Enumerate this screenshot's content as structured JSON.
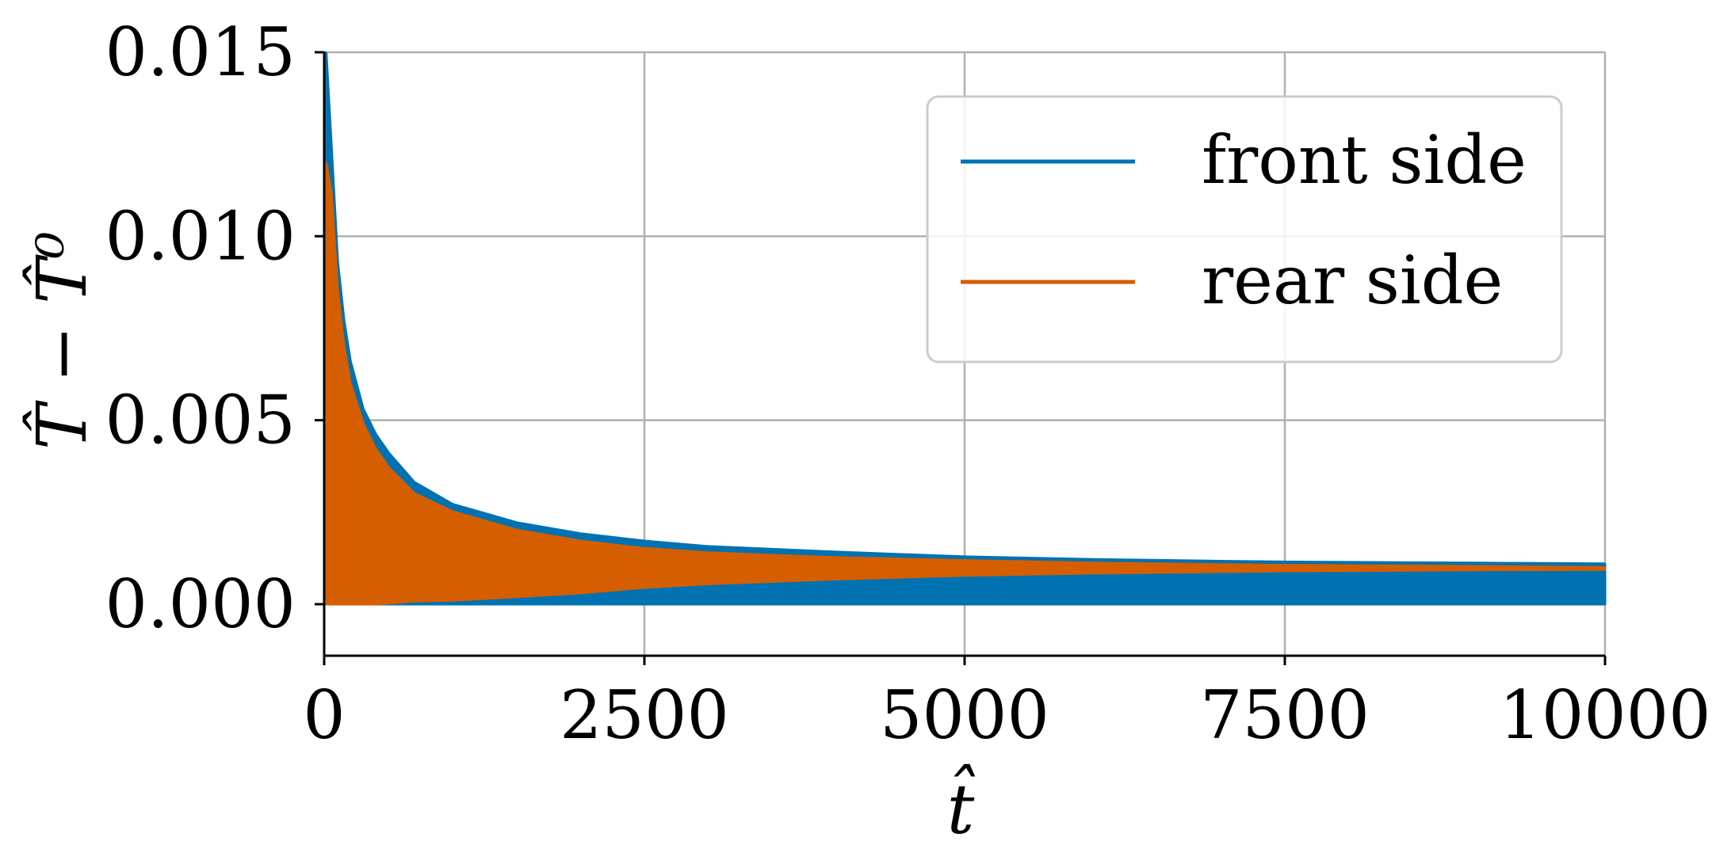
{
  "chart_data": {
    "type": "area",
    "title": "",
    "xlabel": "t̂",
    "ylabel": "T̂ − T̂⁰",
    "xlim": [
      0,
      10000
    ],
    "ylim": [
      -0.0014,
      0.015
    ],
    "xticks": [
      0,
      2500,
      5000,
      7500,
      10000
    ],
    "xtick_labels": [
      "0",
      "2500",
      "5000",
      "7500",
      "10000"
    ],
    "yticks": [
      0.0,
      0.005,
      0.01,
      0.015
    ],
    "ytick_labels": [
      "0.000",
      "0.005",
      "0.010",
      "0.015"
    ],
    "grid": true,
    "legend_position": "top-right",
    "series": [
      {
        "name": "front side",
        "color": "#0072b2",
        "x": [
          10,
          50,
          100,
          150,
          200,
          300,
          400,
          500,
          700,
          1000,
          1500,
          2000,
          2500,
          3000,
          4000,
          5000,
          6000,
          7000,
          7500,
          8000,
          9000,
          10000
        ],
        "upper": [
          0.015,
          0.0125,
          0.0093,
          0.0077,
          0.0066,
          0.0053,
          0.0046,
          0.0041,
          0.0033,
          0.0027,
          0.0022,
          0.0019,
          0.0017,
          0.00155,
          0.0014,
          0.00127,
          0.0012,
          0.00115,
          0.00113,
          0.00112,
          0.0011,
          0.00108
        ],
        "lower": [
          0.0,
          0.0,
          0.0,
          0.0,
          0.0,
          0.0,
          0.0,
          0.0,
          0.0,
          0.0,
          0.0,
          0.0,
          0.0,
          0.0,
          0.0,
          0.0,
          0.0,
          0.0,
          0.0,
          0.0,
          0.0,
          0.0
        ]
      },
      {
        "name": "rear side",
        "color": "#d55e00",
        "x": [
          10,
          50,
          100,
          150,
          200,
          300,
          400,
          500,
          700,
          1000,
          1500,
          2000,
          2500,
          3000,
          4000,
          5000,
          6000,
          7000,
          7500,
          8000,
          9000,
          10000
        ],
        "upper": [
          0.012,
          0.0112,
          0.0085,
          0.007,
          0.006,
          0.0049,
          0.0042,
          0.0037,
          0.003,
          0.0025,
          0.002,
          0.0017,
          0.0015,
          0.00138,
          0.00125,
          0.00117,
          0.0011,
          0.00106,
          0.00104,
          0.00103,
          0.00101,
          0.00098
        ],
        "lower": [
          0.0,
          0.0,
          0.0,
          0.0,
          0.0,
          0.0,
          0.0,
          2e-05,
          8e-05,
          0.0001,
          0.0002,
          0.0003,
          0.00045,
          0.00055,
          0.00068,
          0.00078,
          0.00084,
          0.00088,
          0.0009,
          0.00091,
          0.00093,
          0.00094
        ]
      }
    ]
  }
}
